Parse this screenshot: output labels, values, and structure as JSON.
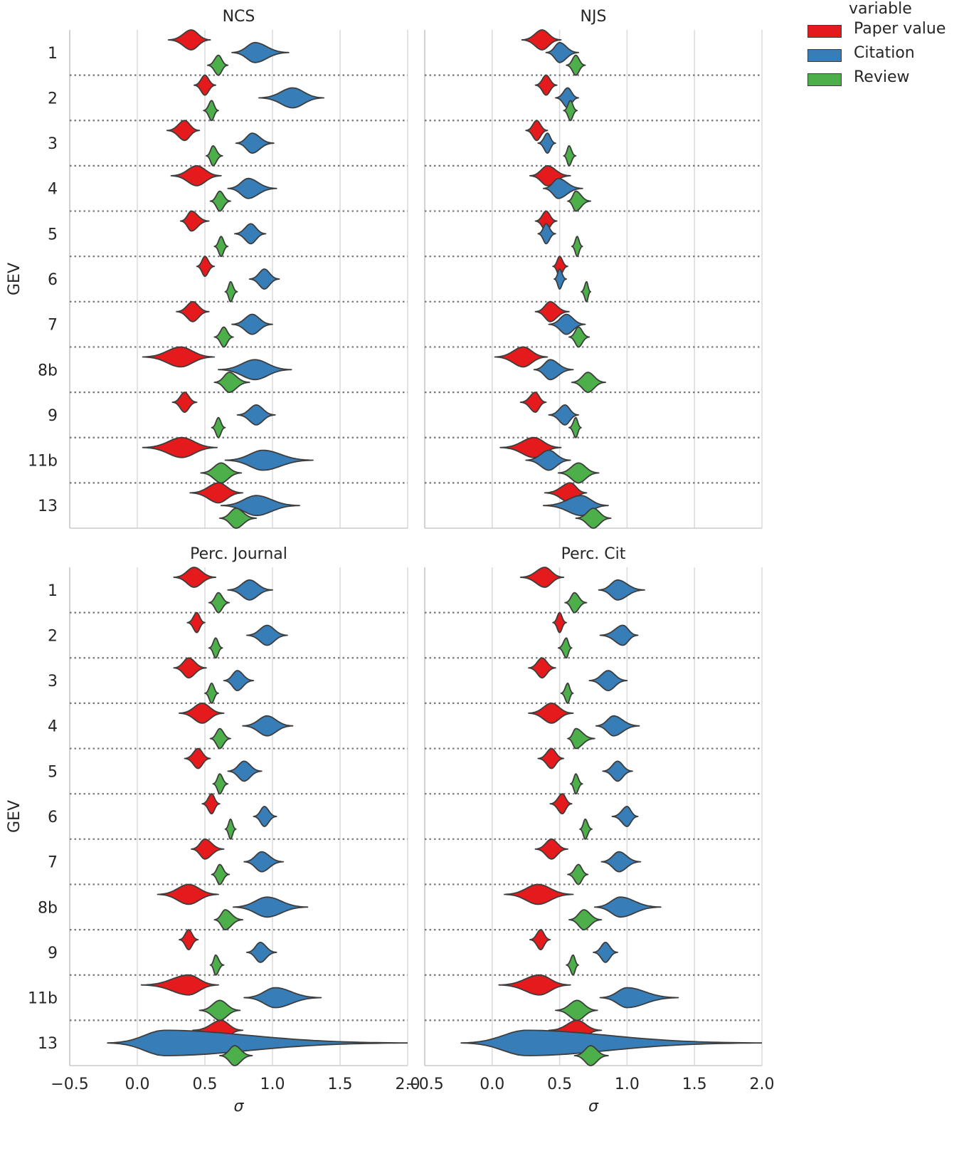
{
  "chart_data": {
    "type": "violin",
    "ylabel": "GEV",
    "xlabel": "σ",
    "xlim": [
      -0.5,
      2.0
    ],
    "xticks": [
      "−0.5",
      "0.0",
      "0.5",
      "1.0",
      "1.5",
      "2.0"
    ],
    "categories": [
      "1",
      "2",
      "3",
      "4",
      "5",
      "6",
      "7",
      "8b",
      "9",
      "11b",
      "13"
    ],
    "legend": {
      "title": "variable",
      "placement": "top-right, outside",
      "entries": [
        {
          "name": "Paper value",
          "color": "#e41a1c"
        },
        {
          "name": "Citation",
          "color": "#377eb8"
        },
        {
          "name": "Review",
          "color": "#4daf4a"
        }
      ]
    },
    "panels": [
      {
        "title": "NCS",
        "series": [
          {
            "name": "Paper value",
            "values": [
              0.4,
              0.5,
              0.35,
              0.44,
              0.4,
              0.5,
              0.41,
              0.32,
              0.35,
              0.33,
              0.6
            ],
            "ranges": [
              [
                0.23,
                0.54
              ],
              [
                0.42,
                0.58
              ],
              [
                0.22,
                0.46
              ],
              [
                0.25,
                0.62
              ],
              [
                0.32,
                0.53
              ],
              [
                0.44,
                0.57
              ],
              [
                0.29,
                0.53
              ],
              [
                0.04,
                0.57
              ],
              [
                0.26,
                0.44
              ],
              [
                0.04,
                0.59
              ],
              [
                0.39,
                0.78
              ]
            ]
          },
          {
            "name": "Citation",
            "values": [
              0.87,
              1.15,
              0.85,
              0.82,
              0.84,
              0.94,
              0.85,
              0.87,
              0.88,
              0.93,
              0.88
            ],
            "ranges": [
              [
                0.7,
                1.12
              ],
              [
                0.9,
                1.38
              ],
              [
                0.73,
                1.01
              ],
              [
                0.67,
                1.03
              ],
              [
                0.72,
                0.95
              ],
              [
                0.83,
                1.05
              ],
              [
                0.7,
                1.0
              ],
              [
                0.6,
                1.14
              ],
              [
                0.74,
                1.02
              ],
              [
                0.65,
                1.3
              ],
              [
                0.62,
                1.2
              ]
            ]
          },
          {
            "name": "Review",
            "values": [
              0.6,
              0.55,
              0.56,
              0.61,
              0.62,
              0.69,
              0.64,
              0.68,
              0.6,
              0.62,
              0.73
            ],
            "ranges": [
              [
                0.52,
                0.67
              ],
              [
                0.49,
                0.6
              ],
              [
                0.51,
                0.63
              ],
              [
                0.54,
                0.69
              ],
              [
                0.57,
                0.67
              ],
              [
                0.65,
                0.74
              ],
              [
                0.57,
                0.71
              ],
              [
                0.57,
                0.83
              ],
              [
                0.55,
                0.65
              ],
              [
                0.47,
                0.77
              ],
              [
                0.61,
                0.88
              ]
            ]
          }
        ]
      },
      {
        "title": "NJS",
        "series": [
          {
            "name": "Paper value",
            "values": [
              0.37,
              0.4,
              0.33,
              0.41,
              0.4,
              0.5,
              0.43,
              0.23,
              0.32,
              0.31,
              0.58
            ],
            "ranges": [
              [
                0.22,
                0.51
              ],
              [
                0.32,
                0.48
              ],
              [
                0.25,
                0.41
              ],
              [
                0.28,
                0.58
              ],
              [
                0.32,
                0.48
              ],
              [
                0.45,
                0.56
              ],
              [
                0.32,
                0.57
              ],
              [
                0.02,
                0.41
              ],
              [
                0.21,
                0.4
              ],
              [
                0.06,
                0.51
              ],
              [
                0.39,
                0.7
              ]
            ]
          },
          {
            "name": "Citation",
            "values": [
              0.5,
              0.56,
              0.41,
              0.49,
              0.4,
              0.5,
              0.55,
              0.43,
              0.54,
              0.42,
              0.66
            ],
            "ranges": [
              [
                0.4,
                0.64
              ],
              [
                0.47,
                0.64
              ],
              [
                0.34,
                0.47
              ],
              [
                0.38,
                0.67
              ],
              [
                0.34,
                0.47
              ],
              [
                0.46,
                0.55
              ],
              [
                0.42,
                0.69
              ],
              [
                0.31,
                0.6
              ],
              [
                0.42,
                0.64
              ],
              [
                0.25,
                0.58
              ],
              [
                0.38,
                0.86
              ]
            ]
          },
          {
            "name": "Review",
            "values": [
              0.62,
              0.58,
              0.57,
              0.62,
              0.63,
              0.7,
              0.64,
              0.71,
              0.62,
              0.64,
              0.75
            ],
            "ranges": [
              [
                0.55,
                0.69
              ],
              [
                0.53,
                0.63
              ],
              [
                0.53,
                0.62
              ],
              [
                0.56,
                0.73
              ],
              [
                0.59,
                0.67
              ],
              [
                0.66,
                0.73
              ],
              [
                0.57,
                0.72
              ],
              [
                0.59,
                0.84
              ],
              [
                0.57,
                0.66
              ],
              [
                0.49,
                0.79
              ],
              [
                0.62,
                0.88
              ]
            ]
          }
        ]
      },
      {
        "title": "Perc. Journal",
        "series": [
          {
            "name": "Paper value",
            "values": [
              0.42,
              0.44,
              0.38,
              0.48,
              0.45,
              0.55,
              0.5,
              0.38,
              0.38,
              0.38,
              0.62
            ],
            "ranges": [
              [
                0.27,
                0.58
              ],
              [
                0.37,
                0.5
              ],
              [
                0.27,
                0.51
              ],
              [
                0.31,
                0.64
              ],
              [
                0.35,
                0.54
              ],
              [
                0.48,
                0.61
              ],
              [
                0.4,
                0.64
              ],
              [
                0.15,
                0.6
              ],
              [
                0.31,
                0.45
              ],
              [
                0.03,
                0.6
              ],
              [
                0.41,
                0.78
              ]
            ]
          },
          {
            "name": "Citation",
            "values": [
              0.83,
              0.96,
              0.74,
              0.96,
              0.79,
              0.94,
              0.92,
              0.96,
              0.91,
              1.02,
              0.2
            ],
            "ranges": [
              [
                0.67,
                1.0
              ],
              [
                0.81,
                1.11
              ],
              [
                0.64,
                0.86
              ],
              [
                0.78,
                1.15
              ],
              [
                0.67,
                0.92
              ],
              [
                0.86,
                1.03
              ],
              [
                0.79,
                1.08
              ],
              [
                0.71,
                1.26
              ],
              [
                0.81,
                1.03
              ],
              [
                0.79,
                1.36
              ],
              [
                -0.22,
                2.0
              ]
            ]
          },
          {
            "name": "Review",
            "values": [
              0.6,
              0.58,
              0.55,
              0.61,
              0.61,
              0.69,
              0.61,
              0.65,
              0.58,
              0.61,
              0.72
            ],
            "ranges": [
              [
                0.53,
                0.68
              ],
              [
                0.53,
                0.63
              ],
              [
                0.5,
                0.6
              ],
              [
                0.54,
                0.69
              ],
              [
                0.56,
                0.67
              ],
              [
                0.65,
                0.73
              ],
              [
                0.55,
                0.68
              ],
              [
                0.57,
                0.78
              ],
              [
                0.54,
                0.64
              ],
              [
                0.46,
                0.76
              ],
              [
                0.61,
                0.85
              ]
            ]
          }
        ]
      },
      {
        "title": "Perc. Cit",
        "series": [
          {
            "name": "Paper value",
            "values": [
              0.39,
              0.5,
              0.37,
              0.44,
              0.44,
              0.52,
              0.44,
              0.34,
              0.36,
              0.35,
              0.63
            ],
            "ranges": [
              [
                0.21,
                0.53
              ],
              [
                0.45,
                0.55
              ],
              [
                0.27,
                0.47
              ],
              [
                0.27,
                0.6
              ],
              [
                0.34,
                0.53
              ],
              [
                0.43,
                0.59
              ],
              [
                0.32,
                0.56
              ],
              [
                0.09,
                0.6
              ],
              [
                0.28,
                0.43
              ],
              [
                0.05,
                0.58
              ],
              [
                0.42,
                0.81
              ]
            ]
          },
          {
            "name": "Citation",
            "values": [
              0.93,
              0.97,
              0.86,
              0.9,
              0.93,
              1.0,
              0.94,
              0.95,
              0.84,
              1.0,
              0.25
            ],
            "ranges": [
              [
                0.79,
                1.13
              ],
              [
                0.8,
                1.08
              ],
              [
                0.72,
                1.0
              ],
              [
                0.77,
                1.09
              ],
              [
                0.82,
                1.04
              ],
              [
                0.89,
                1.08
              ],
              [
                0.81,
                1.1
              ],
              [
                0.76,
                1.25
              ],
              [
                0.75,
                0.93
              ],
              [
                0.8,
                1.38
              ],
              [
                -0.23,
                2.0
              ]
            ]
          },
          {
            "name": "Review",
            "values": [
              0.61,
              0.55,
              0.56,
              0.62,
              0.62,
              0.69,
              0.64,
              0.68,
              0.6,
              0.63,
              0.73
            ],
            "ranges": [
              [
                0.54,
                0.7
              ],
              [
                0.49,
                0.59
              ],
              [
                0.51,
                0.6
              ],
              [
                0.56,
                0.76
              ],
              [
                0.58,
                0.67
              ],
              [
                0.65,
                0.74
              ],
              [
                0.56,
                0.71
              ],
              [
                0.57,
                0.81
              ],
              [
                0.55,
                0.64
              ],
              [
                0.47,
                0.78
              ],
              [
                0.61,
                0.86
              ]
            ]
          }
        ]
      }
    ]
  }
}
